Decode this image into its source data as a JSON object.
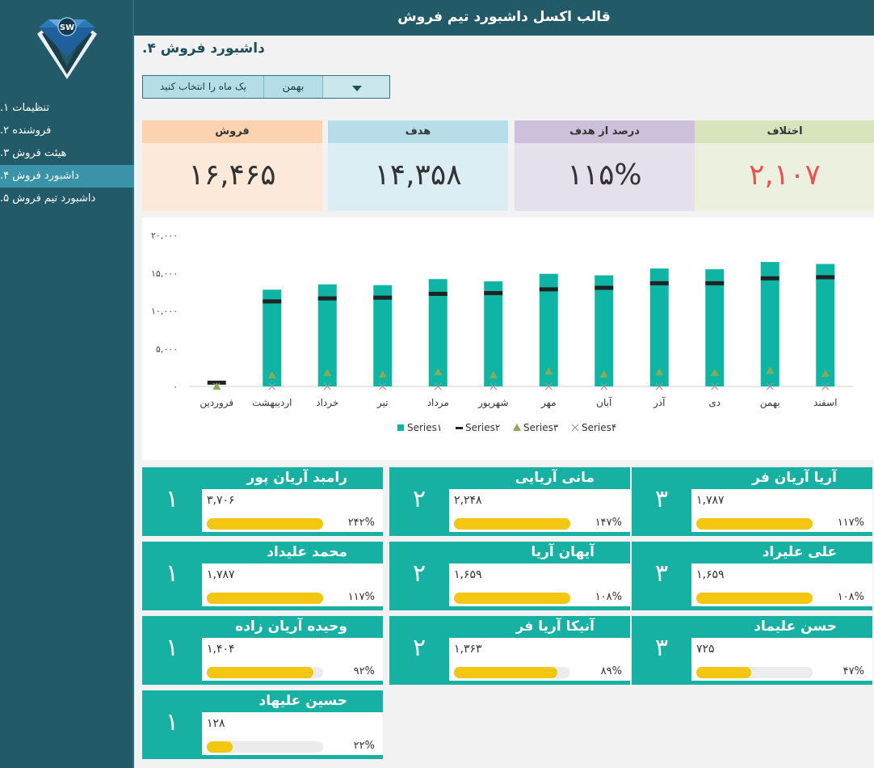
{
  "app": {
    "title": "قالب اکسل داشبورد تیم فروش",
    "logo_text": "SW"
  },
  "sidebar": {
    "items": [
      {
        "label": "تنظیمات ۱."
      },
      {
        "label": "فروشنده ۲."
      },
      {
        "label": "هیئت فروش ۳."
      },
      {
        "label": "داشبورد فروش ۴."
      },
      {
        "label": "داشبورد تیم فروش ۵."
      }
    ],
    "active_index": 3
  },
  "page": {
    "title": "داشبورد فروش ۴."
  },
  "month_select": {
    "prompt": "یک ماه را انتخاب کنید",
    "value": "بهمن"
  },
  "kpis": [
    {
      "label": "فروش",
      "value": "۱۶,۴۶۵",
      "head_color": "#fcd3b1",
      "body_color": "#fde9da",
      "value_color": "#333333"
    },
    {
      "label": "هدف",
      "value": "۱۴,۳۵۸",
      "head_color": "#b7dee8",
      "body_color": "#dbeef3",
      "value_color": "#333333"
    },
    {
      "label": "درصد از هدف",
      "value": "۱۱۵%",
      "head_color": "#ccc0da",
      "body_color": "#e5e0ec",
      "value_color": "#333333"
    },
    {
      "label": "اختلاف",
      "value": "۲,۱۰۷",
      "head_color": "#d8e4bc",
      "body_color": "#ebf1de",
      "value_color": "#e8554e"
    }
  ],
  "chart_data": {
    "type": "bar",
    "categories": [
      "فروردین",
      "اردیبهشت",
      "خرداد",
      "تیر",
      "مرداد",
      "شهریور",
      "مهر",
      "آبان",
      "آذر",
      "دی",
      "بهمن",
      "اسفند"
    ],
    "series": [
      {
        "name": "Series۱",
        "kind": "bar",
        "color": "#0fb5a4",
        "values": [
          0,
          12800,
          13500,
          13400,
          14200,
          13900,
          14900,
          14700,
          15600,
          15500,
          16465,
          16200
        ]
      },
      {
        "name": "Series۲",
        "kind": "dash",
        "color": "#222222",
        "values": [
          550,
          11300,
          11700,
          11800,
          12300,
          12400,
          12900,
          13100,
          13700,
          13700,
          14358,
          14500
        ]
      },
      {
        "name": "Series۳",
        "kind": "triangle",
        "color": "#8aaa55",
        "values": [
          0,
          1500,
          1800,
          1600,
          1900,
          1500,
          2000,
          1600,
          1900,
          1800,
          2107,
          1700
        ]
      },
      {
        "name": "Series۴",
        "kind": "cross",
        "color": "#999999",
        "values": [
          0,
          0,
          0,
          0,
          0,
          0,
          0,
          0,
          0,
          0,
          0,
          0
        ]
      }
    ],
    "yticks": [
      "۰",
      "۵,۰۰۰",
      "۱۰,۰۰۰",
      "۱۵,۰۰۰",
      "۲۰,۰۰۰"
    ],
    "ylim": [
      0,
      20000
    ],
    "legend_position": "bottom"
  },
  "team": [
    {
      "rank": "۱",
      "name": "رامبد آریان پور",
      "amount": "۳,۷۰۶",
      "pct": "۲۴۲%",
      "fill": 1.0
    },
    {
      "rank": "۲",
      "name": "مانی آریایی",
      "amount": "۲,۲۴۸",
      "pct": "۱۴۷%",
      "fill": 1.0
    },
    {
      "rank": "۳",
      "name": "آریا آریان فر",
      "amount": "۱,۷۸۷",
      "pct": "۱۱۷%",
      "fill": 1.0
    },
    {
      "rank": "۱",
      "name": "محمد علیداد",
      "amount": "۱,۷۸۷",
      "pct": "۱۱۷%",
      "fill": 1.0
    },
    {
      "rank": "۲",
      "name": "آیهان آریا",
      "amount": "۱,۶۵۹",
      "pct": "۱۰۸%",
      "fill": 1.0
    },
    {
      "rank": "۳",
      "name": "علی علیراد",
      "amount": "۱,۶۵۹",
      "pct": "۱۰۸%",
      "fill": 1.0
    },
    {
      "rank": "۱",
      "name": "وحیده آریان زاده",
      "amount": "۱,۴۰۴",
      "pct": "۹۲%",
      "fill": 0.92
    },
    {
      "rank": "۲",
      "name": "آنیکا آریا فر",
      "amount": "۱,۳۶۳",
      "pct": "۸۹%",
      "fill": 0.89
    },
    {
      "rank": "۳",
      "name": "حسن علیماد",
      "amount": "۷۲۵",
      "pct": "۴۷%",
      "fill": 0.47
    },
    {
      "rank": "۱",
      "name": "حسین علیهاد",
      "amount": "۱۲۸",
      "pct": "۲۲%",
      "fill": 0.22
    }
  ]
}
